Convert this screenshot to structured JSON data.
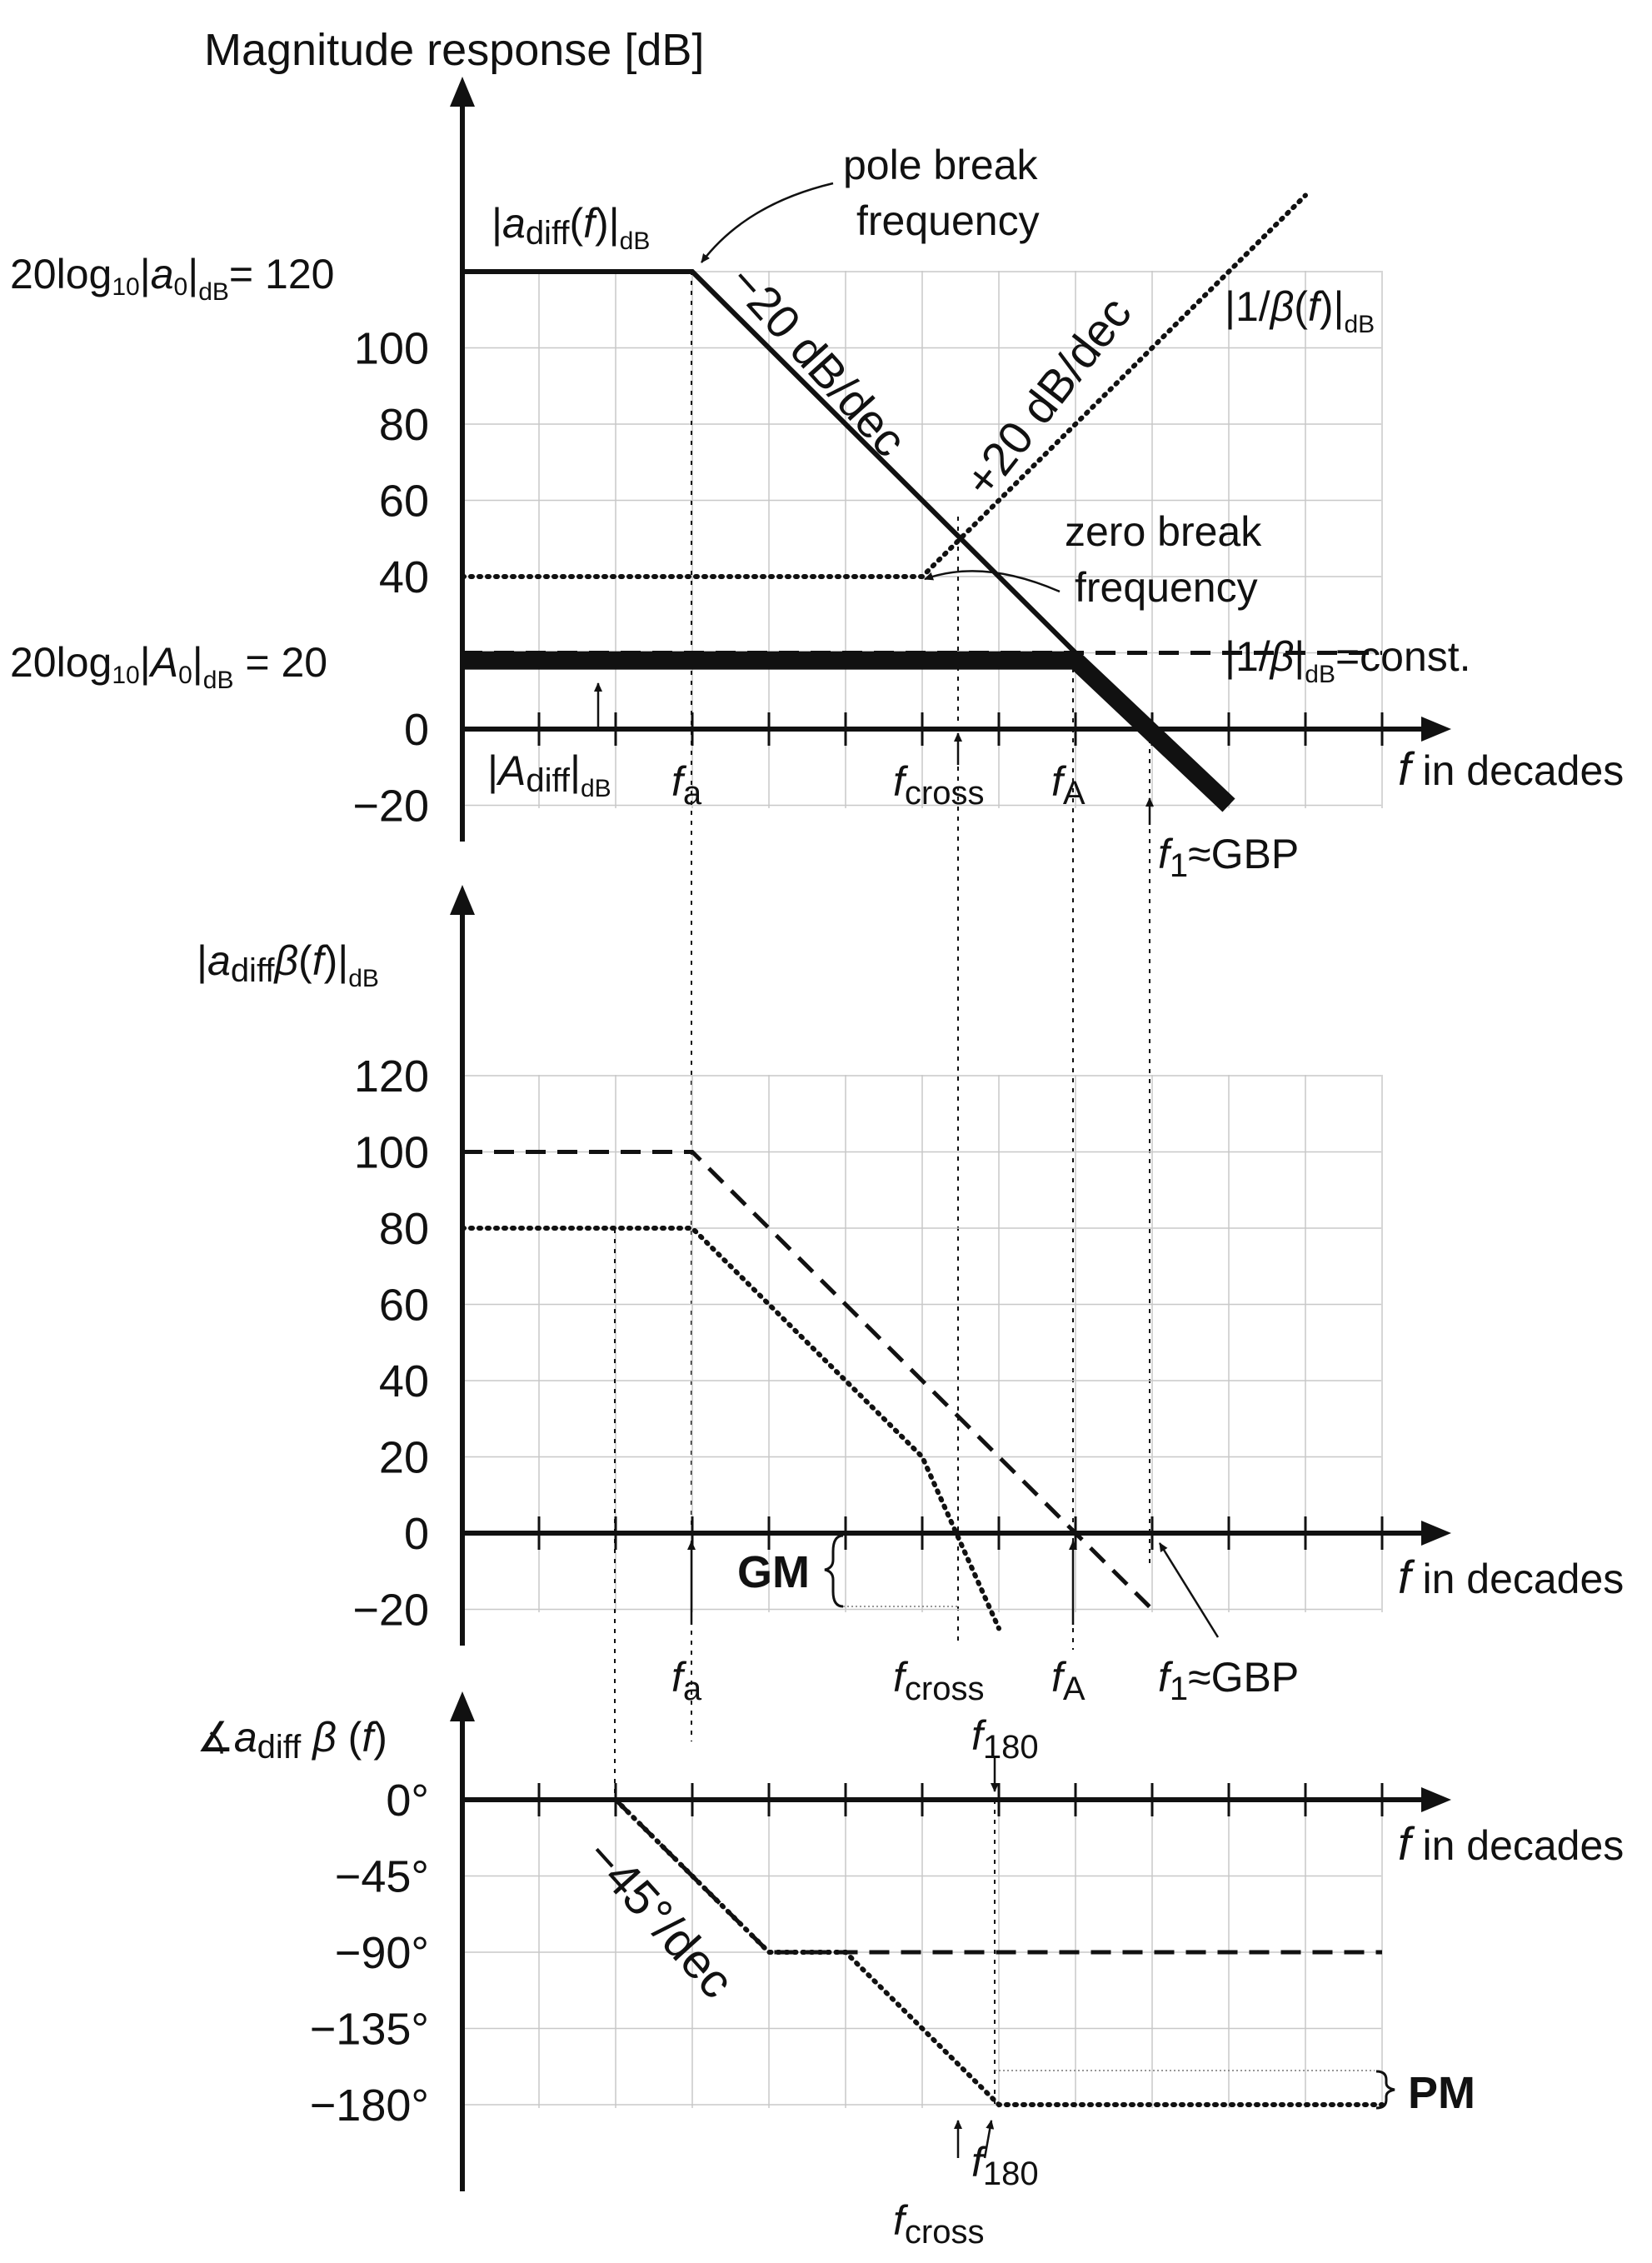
{
  "chart_data": [
    {
      "type": "line",
      "title": "Magnitude response [dB]",
      "xlabel": "f in decades",
      "x_decades": [
        0,
        1,
        2,
        3,
        4,
        5,
        6,
        7,
        8,
        9,
        10,
        11,
        12
      ],
      "yticks": [
        "−20",
        "0",
        "20",
        "40",
        "60",
        "80",
        "100",
        "120"
      ],
      "ytick_values": [
        -20,
        0,
        20,
        40,
        60,
        80,
        100,
        120
      ],
      "ylim": [
        -20,
        120
      ],
      "grid": true,
      "special_tick_labels": {
        "a0": "20log10|a0|dB= 120",
        "A0": "20log10|A0|dB = 20"
      },
      "series": [
        {
          "name": "|adiff(f)|dB",
          "x": [
            0,
            3,
            10
          ],
          "y": [
            120,
            120,
            -20
          ],
          "style": "solid"
        },
        {
          "name": "|1/β(f)|dB",
          "x": [
            0,
            6,
            11
          ],
          "y": [
            40,
            40,
            140
          ],
          "style": "dotted"
        },
        {
          "name": "|1/β|dB=const.",
          "x": [
            0,
            12
          ],
          "y": [
            20,
            20
          ],
          "style": "dashed"
        },
        {
          "name": "|Adiff|dB",
          "x": [
            0,
            8,
            10
          ],
          "y": [
            18,
            18,
            -20
          ],
          "style": "thick"
        }
      ],
      "annotations": {
        "pole_break": "pole break frequency",
        "zero_break": "zero break frequency",
        "slope_down": "−20 dB/dec",
        "slope_up": "+20 dB/dec",
        "adiff_label": "|adiff(f)|dB",
        "inv_beta_label": "|1/β(f)|dB",
        "const_label": "|1/β|dB=const.",
        "Adiff_label": "|Adiff|dB",
        "fa": "fa",
        "fcross": "fcross",
        "fA": "fA",
        "f1": "f1≈GBP"
      }
    },
    {
      "type": "line",
      "ylabel": "|adiffβ(f)|dB",
      "xlabel": "f in decades",
      "yticks": [
        "−20",
        "0",
        "20",
        "40",
        "60",
        "80",
        "100",
        "120"
      ],
      "ytick_values": [
        -20,
        0,
        20,
        40,
        60,
        80,
        100,
        120
      ],
      "ylim": [
        -20,
        120
      ],
      "grid": true,
      "series": [
        {
          "name": "dashed",
          "x": [
            0,
            3,
            9
          ],
          "y": [
            100,
            100,
            -20
          ],
          "style": "dashed"
        },
        {
          "name": "dotted",
          "x": [
            0,
            3,
            6,
            7
          ],
          "y": [
            80,
            80,
            20,
            -25
          ],
          "style": "dotted"
        }
      ],
      "annotations": {
        "gm": "GM",
        "fa": "fa",
        "fcross": "fcross",
        "fA": "fA",
        "f1": "f1≈GBP",
        "f180": "f180"
      }
    },
    {
      "type": "line",
      "ylabel": "∡adiff β (f)",
      "xlabel": "f in decades",
      "yticks": [
        "0°",
        "−45°",
        "−90°",
        "−135°",
        "−180°"
      ],
      "ytick_values": [
        0,
        -45,
        -90,
        -135,
        -180
      ],
      "ylim": [
        -180,
        0
      ],
      "grid": true,
      "series": [
        {
          "name": "dashed",
          "x": [
            2,
            4,
            12
          ],
          "y": [
            0,
            -90,
            -90
          ],
          "style": "dashed"
        },
        {
          "name": "dotted",
          "x": [
            2,
            4,
            5,
            7,
            12
          ],
          "y": [
            0,
            -90,
            -90,
            -180,
            -180
          ],
          "style": "dotted"
        }
      ],
      "annotations": {
        "slope": "−45°/dec",
        "pm": "PM",
        "f180": "f180",
        "fcross": "fcross"
      }
    }
  ]
}
